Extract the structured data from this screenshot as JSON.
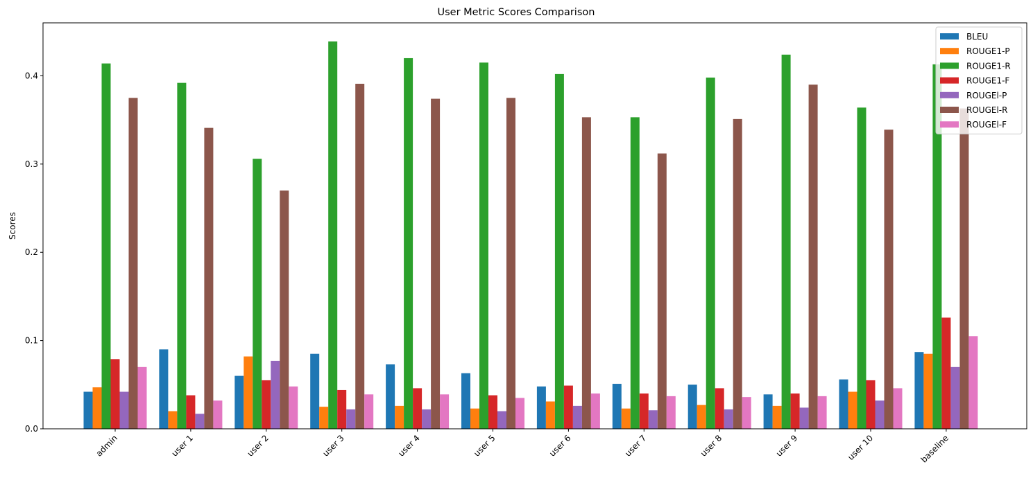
{
  "chart_data": {
    "type": "bar",
    "title": "User Metric Scores Comparison",
    "xlabel": "",
    "ylabel": "Scores",
    "ylim": [
      0,
      0.46
    ],
    "yticks": [
      0.0,
      0.1,
      0.2,
      0.3,
      0.4
    ],
    "ytick_labels": [
      "0.0",
      "0.1",
      "0.2",
      "0.3",
      "0.4"
    ],
    "grid": false,
    "legend_position": "top-right",
    "categories": [
      "admin",
      "user 1",
      "user 2",
      "user 3",
      "user 4",
      "user 5",
      "user 6",
      "user 7",
      "user 8",
      "user 9",
      "user 10",
      "baseline"
    ],
    "series": [
      {
        "name": "BLEU",
        "color": "#1f77b4",
        "values": [
          0.042,
          0.09,
          0.06,
          0.085,
          0.073,
          0.063,
          0.048,
          0.051,
          0.05,
          0.039,
          0.056,
          0.087
        ]
      },
      {
        "name": "ROUGE1-P",
        "color": "#ff7f0e",
        "values": [
          0.047,
          0.02,
          0.082,
          0.025,
          0.026,
          0.023,
          0.031,
          0.023,
          0.027,
          0.026,
          0.042,
          0.085
        ]
      },
      {
        "name": "ROUGE1-R",
        "color": "#2ca02c",
        "values": [
          0.414,
          0.392,
          0.306,
          0.439,
          0.42,
          0.415,
          0.402,
          0.353,
          0.398,
          0.424,
          0.364,
          0.413
        ]
      },
      {
        "name": "ROUGE1-F",
        "color": "#d62728",
        "values": [
          0.079,
          0.038,
          0.055,
          0.044,
          0.046,
          0.038,
          0.049,
          0.04,
          0.046,
          0.04,
          0.055,
          0.126
        ]
      },
      {
        "name": "ROUGEl-P",
        "color": "#9467bd",
        "values": [
          0.042,
          0.017,
          0.077,
          0.022,
          0.022,
          0.02,
          0.026,
          0.021,
          0.022,
          0.024,
          0.032,
          0.07
        ]
      },
      {
        "name": "ROUGEl-R",
        "color": "#8c564b",
        "values": [
          0.375,
          0.341,
          0.27,
          0.391,
          0.374,
          0.375,
          0.353,
          0.312,
          0.351,
          0.39,
          0.339,
          0.363
        ]
      },
      {
        "name": "ROUGEl-F",
        "color": "#e377c2",
        "values": [
          0.07,
          0.032,
          0.048,
          0.039,
          0.039,
          0.035,
          0.04,
          0.037,
          0.036,
          0.037,
          0.046,
          0.105
        ]
      }
    ]
  }
}
